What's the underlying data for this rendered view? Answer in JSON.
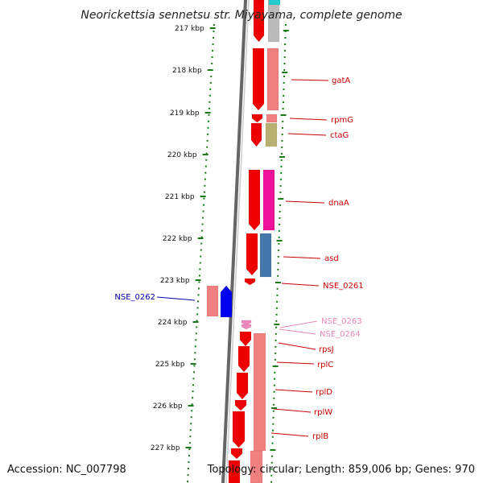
{
  "header": {
    "title": "Neorickettsia sennetsu str. Miyayama, complete genome"
  },
  "footer": {
    "accession": "Accession: NC_007798",
    "summary": "Topology: circular; Length: 859,006 bp; Genes: 970"
  },
  "colors": {
    "backbone": "#888888",
    "tick": "#1a7a1a",
    "label_red": "#cc0000",
    "label_blue": "#0000aa",
    "label_pink": "#ee88bb",
    "gene_red": "#ee0000",
    "gene_salmon": "#f08080",
    "gene_magenta": "#ee1199",
    "gene_olive": "#b8b070",
    "gene_steelblue": "#4477aa",
    "gene_blue": "#0000ee",
    "gene_grey": "#bbbbbb",
    "gene_cyan": "#22cccc"
  },
  "kbp_ticks": [
    "217 kbp",
    "218 kbp",
    "219 kbp",
    "220 kbp",
    "221 kbp",
    "222 kbp",
    "223 kbp",
    "224 kbp",
    "225 kbp",
    "226 kbp",
    "227 kbp"
  ],
  "gene_labels": [
    {
      "text": "gatA",
      "color": "red"
    },
    {
      "text": "rpmG",
      "color": "red"
    },
    {
      "text": "ctaG",
      "color": "red"
    },
    {
      "text": "dnaA",
      "color": "red"
    },
    {
      "text": "asd",
      "color": "red"
    },
    {
      "text": "NSE_0261",
      "color": "red"
    },
    {
      "text": "NSE_0262",
      "color": "blue"
    },
    {
      "text": "NSE_0263",
      "color": "pink"
    },
    {
      "text": "NSE_0264",
      "color": "pink"
    },
    {
      "text": "rpsJ",
      "color": "red"
    },
    {
      "text": "rplC",
      "color": "red"
    },
    {
      "text": "rplD",
      "color": "red"
    },
    {
      "text": "rplW",
      "color": "red"
    },
    {
      "text": "rplB",
      "color": "red"
    }
  ]
}
